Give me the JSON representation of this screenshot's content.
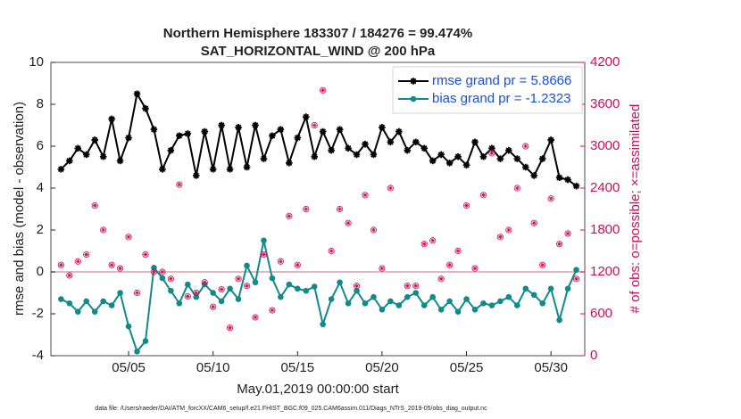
{
  "chart_data": {
    "type": "line",
    "title": "Northern Hemisphere 183307 / 184276 = 99.474%",
    "subtitle": "SAT_HORIZONTAL_WIND @ 200 hPa",
    "x_label": "May.01,2019 00:00:00 start",
    "y_label": "rmse and bias (model - observation)",
    "y2_label": "# of obs: o=possible; ×=assimilated",
    "footnote": "data file: /Users/raeder/DAI/ATM_forcXX/CAM6_setup/f.e21.FHIST_BGC.f09_025.CAM6assim.011/Diags_NTrS_2019-05/obs_diag_output.nc",
    "xlim": [
      0.4,
      32
    ],
    "xticks": [
      {
        "value": 5,
        "label": "05/05"
      },
      {
        "value": 10,
        "label": "05/10"
      },
      {
        "value": 15,
        "label": "05/15"
      },
      {
        "value": 20,
        "label": "05/20"
      },
      {
        "value": 25,
        "label": "05/25"
      },
      {
        "value": 30,
        "label": "05/30"
      }
    ],
    "ylim": [
      -4,
      10
    ],
    "yticks": [
      -4,
      -2,
      0,
      2,
      4,
      6,
      8,
      10
    ],
    "y2lim": [
      0,
      4200
    ],
    "y2ticks": [
      0,
      600,
      1200,
      1800,
      2400,
      3000,
      3600,
      4200
    ],
    "y2_color": "#c8105a",
    "zero_line": 0,
    "legend": "upper right",
    "x": [
      1,
      1.5,
      2,
      2.5,
      3,
      3.5,
      4,
      4.5,
      5,
      5.5,
      6,
      6.5,
      7,
      7.5,
      8,
      8.5,
      9,
      9.5,
      10,
      10.5,
      11,
      11.5,
      12,
      12.5,
      13,
      13.5,
      14,
      14.5,
      15,
      15.5,
      16,
      16.5,
      17,
      17.5,
      18,
      18.5,
      19,
      19.5,
      20,
      20.5,
      21,
      21.5,
      22,
      22.5,
      23,
      23.5,
      24,
      24.5,
      25,
      25.5,
      26,
      26.5,
      27,
      27.5,
      28,
      28.5,
      29,
      29.5,
      30,
      30.5,
      31,
      31.5
    ],
    "series": [
      {
        "name": "rmse grand pr = 5.8666",
        "color": "#000000",
        "values": [
          4.9,
          5.3,
          5.9,
          5.6,
          6.3,
          5.5,
          7.3,
          5.3,
          6.4,
          8.5,
          7.8,
          6.8,
          4.9,
          5.8,
          6.5,
          6.6,
          4.6,
          6.7,
          4.9,
          7.0,
          4.9,
          6.9,
          5.0,
          7.0,
          5.4,
          6.5,
          6.8,
          5.2,
          6.4,
          7.4,
          5.5,
          6.7,
          5.8,
          6.8,
          5.9,
          5.6,
          6.1,
          5.6,
          6.9,
          6.2,
          6.7,
          5.8,
          6.2,
          5.9,
          5.3,
          5.6,
          5.2,
          5.5,
          5.1,
          6.2,
          5.5,
          5.9,
          5.4,
          5.8,
          5.4,
          5.0,
          4.6,
          5.4,
          6.3,
          4.5,
          4.4,
          4.1
        ]
      },
      {
        "name": "bias grand pr = -1.2323",
        "color": "#108a8a",
        "values": [
          -1.3,
          -1.5,
          -1.9,
          -1.4,
          -1.9,
          -1.4,
          -1.6,
          -1.0,
          -2.6,
          -3.8,
          -3.3,
          0.2,
          -0.3,
          -0.9,
          -1.5,
          -0.6,
          -1.2,
          -0.6,
          -1.0,
          -1.4,
          -0.8,
          -1.3,
          0.3,
          -0.5,
          1.5,
          -0.3,
          -1.2,
          -0.6,
          -0.8,
          -0.9,
          -0.7,
          -2.5,
          -1.3,
          -0.5,
          -1.5,
          -0.9,
          -1.5,
          -1.2,
          -1.8,
          -1.4,
          -1.6,
          -1.2,
          -1.0,
          -1.6,
          -1.2,
          -1.8,
          -1.4,
          -1.9,
          -1.3,
          -1.8,
          -1.5,
          -1.6,
          -1.4,
          -1.2,
          -1.6,
          -0.8,
          -1.1,
          -1.5,
          -0.8,
          -2.3,
          -0.8,
          0.1
        ]
      },
      {
        "color": "#c8105a",
        "axis": "y2",
        "values": [
          1300,
          1150,
          1350,
          1450,
          2150,
          1800,
          1300,
          1250,
          1700,
          900,
          1450,
          1200,
          1200,
          1100,
          2450,
          850,
          900,
          1050,
          700,
          950,
          400,
          1100,
          1000,
          550,
          1450,
          650,
          1350,
          2000,
          1300,
          2100,
          3300,
          3800,
          1500,
          2100,
          1900,
          1000,
          2300,
          1800,
          1250,
          2400,
          3600,
          1000,
          1000,
          1600,
          1650,
          1100,
          1300,
          1500,
          2150,
          1250,
          2300,
          2900,
          1700,
          1800,
          2400,
          3000,
          1900,
          1300,
          2250,
          1600,
          1750,
          1100
        ]
      }
    ]
  }
}
